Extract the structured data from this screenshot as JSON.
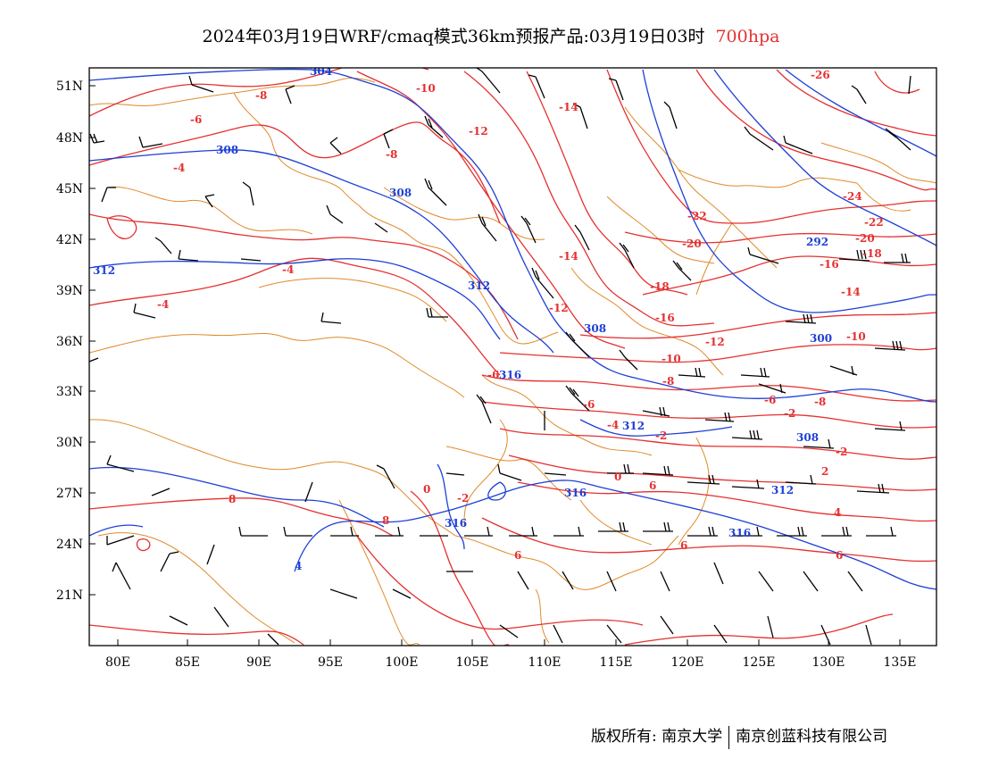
{
  "title": {
    "main": "2024年03月19日WRF/cmaq模式36km预报产品:03月19日03时",
    "level": "700hpa"
  },
  "map": {
    "lon_labels": [
      "80E",
      "85E",
      "90E",
      "95E",
      "100E",
      "105E",
      "110E",
      "115E",
      "120E",
      "125E",
      "130E",
      "135E"
    ],
    "lat_labels": [
      "51N",
      "48N",
      "45N",
      "42N",
      "39N",
      "36N",
      "33N",
      "30N",
      "27N",
      "24N",
      "21N"
    ],
    "temperature_labels": [
      "-26",
      "-24",
      "-22",
      "-22",
      "-20",
      "-20",
      "-18",
      "-18",
      "-16",
      "-16",
      "-14",
      "-14",
      "-14",
      "-12",
      "-12",
      "-12",
      "-10",
      "-10",
      "-10",
      "-8",
      "-8",
      "-8",
      "-8",
      "-6",
      "-6",
      "-6",
      "-6",
      "-4",
      "-4",
      "-4",
      "-4",
      "-2",
      "-2",
      "-2",
      "-2",
      "0",
      "0",
      "2",
      "4",
      "6",
      "6",
      "6",
      "6",
      "8",
      "8"
    ],
    "height_labels": [
      "304",
      "308",
      "308",
      "292",
      "312",
      "312",
      "308",
      "300",
      "316",
      "312",
      "308",
      "316",
      "312",
      "316",
      "316",
      "4"
    ],
    "colors": {
      "temperature": "#e53030",
      "height": "#1e3fd6",
      "border": "#e08a2a",
      "wind": "#000000"
    }
  },
  "credit": {
    "left": "版权所有: 南京大学",
    "right": "南京创蓝科技有限公司"
  }
}
